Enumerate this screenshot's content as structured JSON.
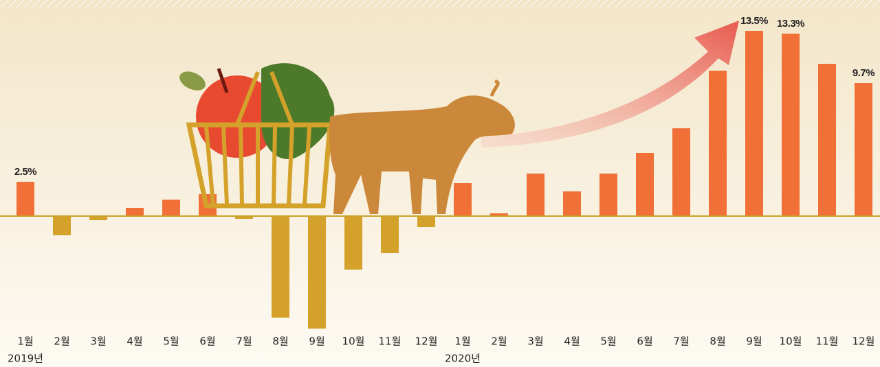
{
  "chart_data": {
    "type": "bar",
    "categories": [
      "1월",
      "2월",
      "3월",
      "4월",
      "5월",
      "6월",
      "7월",
      "8월",
      "9월",
      "10월",
      "11월",
      "12월",
      "1월",
      "2월",
      "3월",
      "4월",
      "5월",
      "6월",
      "7월",
      "8월",
      "9월",
      "10월",
      "11월",
      "12월"
    ],
    "year_labels": [
      "2019년",
      null,
      null,
      null,
      null,
      null,
      null,
      null,
      null,
      null,
      null,
      null,
      "2020년",
      null,
      null,
      null,
      null,
      null,
      null,
      null,
      null,
      null,
      null,
      null
    ],
    "values": [
      2.5,
      -1.4,
      -0.3,
      0.6,
      1.2,
      1.6,
      -0.2,
      -7.4,
      -8.2,
      -3.9,
      -2.7,
      -0.8,
      2.4,
      0.2,
      3.1,
      1.8,
      3.1,
      4.6,
      6.4,
      10.6,
      13.5,
      13.3,
      11.1,
      9.7
    ],
    "value_labels": [
      "2.5%",
      null,
      null,
      null,
      null,
      null,
      null,
      null,
      null,
      null,
      null,
      null,
      null,
      null,
      null,
      null,
      null,
      null,
      null,
      null,
      "13.5%",
      "13.3%",
      null,
      "9.7%"
    ],
    "positive_color": "#f07038",
    "negative_color": "#d4a12a",
    "ylim": [
      -8.5,
      15.25
    ]
  }
}
